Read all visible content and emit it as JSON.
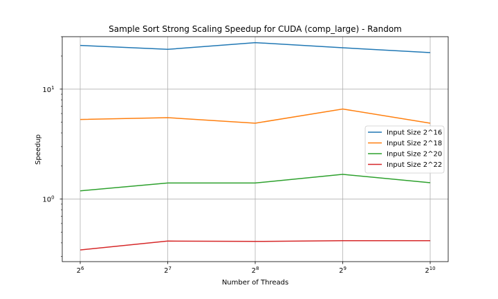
{
  "chart_data": {
    "type": "line",
    "title": "Sample Sort Strong Scaling Speedup for CUDA (comp_large) - Random",
    "xlabel": "Number of Threads",
    "ylabel": "Speedup",
    "x_scale": "log2",
    "y_scale": "log10",
    "x": [
      64,
      128,
      256,
      512,
      1024
    ],
    "x_tick_labels": [
      {
        "base": "2",
        "exp": "6"
      },
      {
        "base": "2",
        "exp": "7"
      },
      {
        "base": "2",
        "exp": "8"
      },
      {
        "base": "2",
        "exp": "9"
      },
      {
        "base": "2",
        "exp": "10"
      }
    ],
    "y_tick_labels": [
      {
        "base": "10",
        "exp": "0",
        "value": 1
      },
      {
        "base": "10",
        "exp": "1",
        "value": 10
      }
    ],
    "ylim": [
      0.27,
      30
    ],
    "grid": true,
    "legend_position": "right",
    "series": [
      {
        "name": "Input Size 2^16",
        "color": "#1f77b4",
        "values": [
          25.0,
          23.0,
          26.5,
          23.8,
          21.5
        ]
      },
      {
        "name": "Input Size 2^18",
        "color": "#ff7f0e",
        "values": [
          5.3,
          5.5,
          4.9,
          6.6,
          4.9
        ]
      },
      {
        "name": "Input Size 2^20",
        "color": "#2ca02c",
        "values": [
          1.19,
          1.4,
          1.4,
          1.68,
          1.41
        ]
      },
      {
        "name": "Input Size 2^22",
        "color": "#d62728",
        "values": [
          0.345,
          0.415,
          0.412,
          0.418,
          0.419
        ]
      }
    ]
  }
}
